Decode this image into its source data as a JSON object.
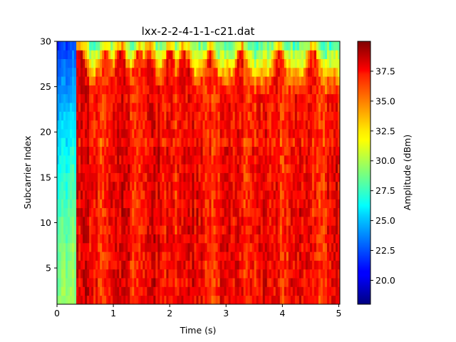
{
  "chart_data": {
    "type": "heatmap",
    "title": "lxx-2-2-4-1-1-c21.dat",
    "xlabel": "Time (s)",
    "ylabel": "Subcarrier Index",
    "xlim": [
      0,
      5.02
    ],
    "ylim": [
      1,
      30
    ],
    "xticks": [
      "0",
      "1",
      "2",
      "3",
      "4",
      "5"
    ],
    "yticks": [
      "5",
      "10",
      "15",
      "20",
      "25",
      "30"
    ],
    "colorbar": {
      "label": "Amplitude (dBm)",
      "colormap": "jet",
      "range": [
        18,
        40
      ],
      "ticks": [
        "20.0",
        "22.5",
        "25.0",
        "27.5",
        "30.0",
        "32.5",
        "35.0",
        "37.5"
      ]
    },
    "grid": false,
    "segments": [
      {
        "t_start": 0.0,
        "t_end": 0.36,
        "description": "low-amplitude segment",
        "amp_low_subcarriers": 29.5,
        "amp_high_subcarriers": 22
      },
      {
        "t_start": 0.36,
        "t_end": 5.0,
        "description": "high-amplitude segment",
        "amp_low_subcarriers": 37,
        "amp_high_subcarriers": 27
      }
    ],
    "peaks_time": [
      0.41,
      0.85,
      1.13,
      1.45,
      1.62,
      2.0,
      2.25,
      2.72,
      3.28,
      3.95,
      4.55
    ]
  }
}
